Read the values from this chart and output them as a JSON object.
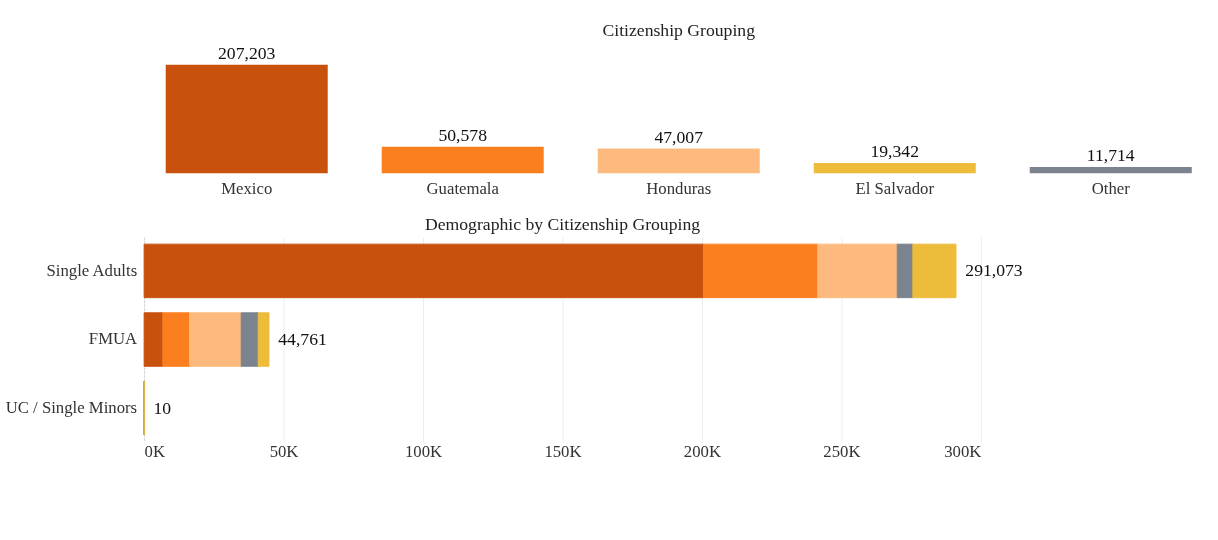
{
  "chart_data": [
    {
      "type": "bar",
      "title": "Citizenship Grouping",
      "categories": [
        "Mexico",
        "Guatemala",
        "Honduras",
        "El Salvador",
        "Other"
      ],
      "values": [
        207203,
        50578,
        47007,
        19342,
        11714
      ],
      "colors": [
        "#c8510d",
        "#fb7f1f",
        "#fdba7e",
        "#ecbc3a",
        "#7b838f"
      ],
      "value_labels": [
        "207,203",
        "50,578",
        "47,007",
        "19,342",
        "11,714"
      ],
      "tick_labels": "x"
    },
    {
      "type": "bar",
      "title": "Demographic by Citizenship Grouping",
      "orientation": "horizontal",
      "stacked": true,
      "categories": [
        "Single Adults",
        "FMUA",
        "UC / Single Minors"
      ],
      "series": [
        {
          "color": "#c8510d",
          "values": [
            200500,
            6700,
            0
          ]
        },
        {
          "color": "#fb7f1f",
          "values": [
            41000,
            9600,
            0
          ]
        },
        {
          "color": "#fdba7e",
          "values": [
            28500,
            18500,
            0
          ]
        },
        {
          "color": "#7b838f",
          "values": [
            5600,
            6100,
            0
          ]
        },
        {
          "color": "#ecbc3a",
          "values": [
            15473,
            3861,
            10
          ]
        }
      ],
      "totals": [
        "291,073",
        "44,761",
        "10"
      ],
      "xlim": [
        0,
        300000
      ],
      "xticks": [
        {
          "value": 0,
          "label": "0K"
        },
        {
          "value": 50000,
          "label": "50K"
        },
        {
          "value": 100000,
          "label": "100K"
        },
        {
          "value": 150000,
          "label": "150K"
        },
        {
          "value": 200000,
          "label": "200K"
        },
        {
          "value": 250000,
          "label": "250K"
        },
        {
          "value": 300000,
          "label": "300K"
        }
      ],
      "grid": "x"
    }
  ]
}
